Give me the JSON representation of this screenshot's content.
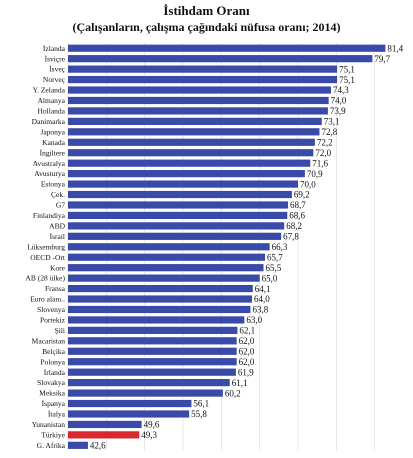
{
  "colors": {
    "bar": "#3a4aa8",
    "highlight": "#d9272e",
    "gridline": "#d9d9d9",
    "background": "#ffffff"
  },
  "chart_data": {
    "type": "bar",
    "orientation": "horizontal",
    "title": "İstihdam Oranı",
    "subtitle": "(Çalışanların, çalışma çağındaki nüfusa oranı; 2014)",
    "xlabel": "",
    "ylabel": "",
    "xlim": [
      40,
      82
    ],
    "grid": true,
    "legend": "none",
    "highlight_category": "Türkiye",
    "categories": [
      "İzlanda",
      "İsviçre",
      "İsveç",
      "Norveç",
      "Y. Zelanda",
      "Almanya",
      "Hollanda",
      "Danimarka",
      "Japonya",
      "Kanada",
      "İngiltere",
      "Avustralya",
      "Avusturya",
      "Estonya",
      "Çek.",
      "G7",
      "Finlandiya",
      "ABD",
      "İsrail",
      "Lüksemburg",
      "OECD -Ort",
      "Kore",
      "AB (28 ülke)",
      "Fransa",
      "Euro alanı..",
      "Slovenya",
      "Portekiz",
      "Şili",
      "Macaristan",
      "Belçika",
      "Polonya",
      "İrlanda",
      "Slovakya",
      "Meksika",
      "İspanya",
      "İtalya",
      "Yunanistan",
      "Türkiye",
      "G. Afrika"
    ],
    "values": [
      81.4,
      79.7,
      75.1,
      75.1,
      74.3,
      74.0,
      73.9,
      73.1,
      72.8,
      72.2,
      72.0,
      71.6,
      70.9,
      70.0,
      69.2,
      68.7,
      68.6,
      68.2,
      67.8,
      66.3,
      65.7,
      65.5,
      65.0,
      64.1,
      64.0,
      63.8,
      63.0,
      62.1,
      62.0,
      62.0,
      62.0,
      61.9,
      61.1,
      60.2,
      56.1,
      55.8,
      49.6,
      49.3,
      42.6
    ],
    "value_labels": [
      "81,4",
      "79,7",
      "75,1",
      "75,1",
      "74,3",
      "74,0",
      "73,9",
      "73,1",
      "72,8",
      "72,2",
      "72,0",
      "71,6",
      "70,9",
      "70,0",
      "69,2",
      "68,7",
      "68,6",
      "68,2",
      "67,8",
      "66,3",
      "65,7",
      "65,5",
      "65,0",
      "64,1",
      "64,0",
      "63,8",
      "63,0",
      "62,1",
      "62,0",
      "62,0",
      "62,0",
      "61,9",
      "61,1",
      "60,2",
      "56,1",
      "55,8",
      "49,6",
      "49,3",
      "42,6"
    ]
  }
}
